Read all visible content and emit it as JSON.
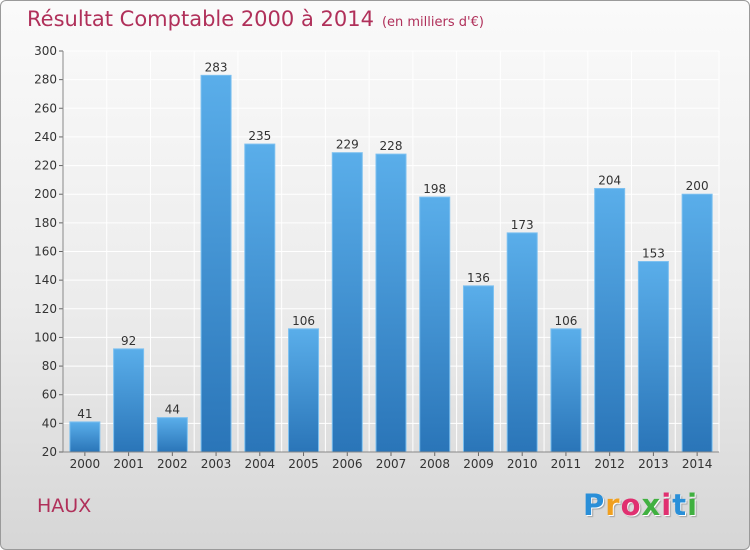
{
  "title": "Résultat Comptable 2000 à 2014",
  "subtitle": "(en milliers d'€)",
  "place_label": "HAUX",
  "logo": {
    "letters": [
      "P",
      "r",
      "o",
      "x",
      "i",
      "t",
      "i"
    ],
    "colors": [
      "#2a8fd8",
      "#f0a020",
      "#e03070",
      "#40b040",
      "#e03070",
      "#2a8fd8",
      "#40b040"
    ]
  },
  "colors": {
    "bar_top": "#5aaeea",
    "bar_bottom": "#2a75b8",
    "title": "#b0305a"
  },
  "chart_data": {
    "type": "bar",
    "title": "Résultat Comptable 2000 à 2014",
    "subtitle": "(en milliers d'€)",
    "categories": [
      "2000",
      "2001",
      "2002",
      "2003",
      "2004",
      "2005",
      "2006",
      "2007",
      "2008",
      "2009",
      "2010",
      "2011",
      "2012",
      "2013",
      "2014"
    ],
    "values": [
      41,
      92,
      44,
      283,
      235,
      106,
      229,
      228,
      198,
      136,
      173,
      106,
      204,
      153,
      200
    ],
    "ylim": [
      20,
      300
    ],
    "yticks": [
      20,
      40,
      60,
      80,
      100,
      120,
      140,
      160,
      180,
      200,
      220,
      240,
      260,
      280,
      300
    ],
    "grid": true,
    "data_labels": true
  }
}
